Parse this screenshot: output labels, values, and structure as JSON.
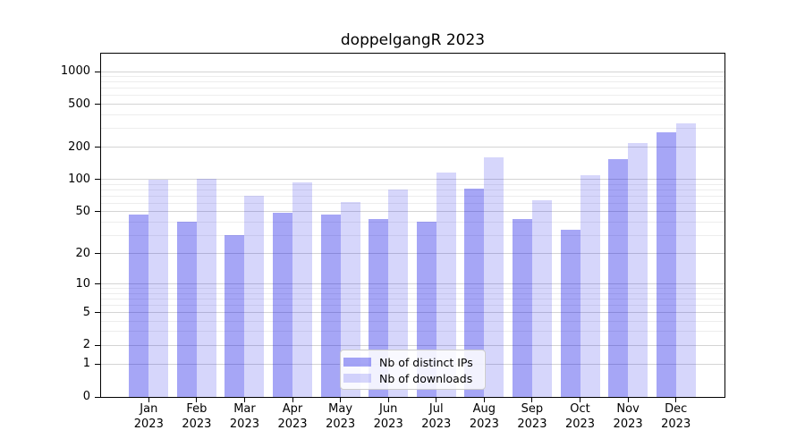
{
  "title": "doppelgangR 2023",
  "legend": {
    "items": [
      {
        "label": "Nb of distinct IPs",
        "color_key": "ips"
      },
      {
        "label": "Nb of downloads",
        "color_key": "downloads"
      }
    ]
  },
  "colors": {
    "ips": "rgba(0,0,230,0.35)",
    "downloads": "rgba(0,0,230,0.16)",
    "grid_major": "#d4d4d4",
    "grid_minor": "#ededed",
    "axis": "#000000"
  },
  "chart_data": {
    "type": "bar",
    "title": "doppelgangR 2023",
    "scale": "log10(x+1)",
    "categories": [
      "Jan",
      "Feb",
      "Mar",
      "Apr",
      "May",
      "Jun",
      "Jul",
      "Aug",
      "Sep",
      "Oct",
      "Nov",
      "Dec"
    ],
    "year": "2023",
    "series": [
      {
        "name": "Nb of distinct IPs",
        "color_key": "ips",
        "values": [
          47,
          40,
          30,
          49,
          47,
          43,
          40,
          83,
          43,
          34,
          154,
          273
        ]
      },
      {
        "name": "Nb of downloads",
        "color_key": "downloads",
        "values": [
          100,
          101,
          70,
          95,
          62,
          81,
          117,
          162,
          64,
          110,
          218,
          332
        ]
      }
    ],
    "yticks": [
      0,
      1,
      2,
      5,
      10,
      20,
      50,
      100,
      200,
      500,
      1000
    ],
    "grid_major_values": [
      1,
      2,
      5,
      10,
      20,
      50,
      100,
      200,
      500,
      1000
    ],
    "grid_minor_values": [
      3,
      4,
      6,
      7,
      8,
      9,
      30,
      40,
      60,
      70,
      80,
      90,
      300,
      400,
      600,
      700,
      800,
      900
    ],
    "ylim": [
      0,
      1465
    ],
    "xlabel": "",
    "ylabel": "",
    "grid": true,
    "legend_position": "lower center"
  }
}
